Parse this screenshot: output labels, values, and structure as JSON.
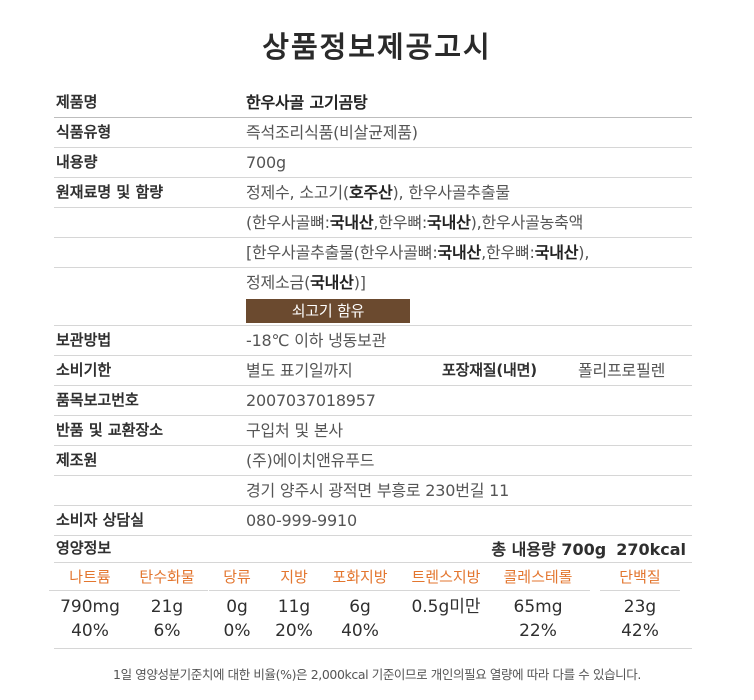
{
  "title": "상품정보제공고시",
  "rows": {
    "product_name": {
      "label": "제품명",
      "value": "한우사골 고기곰탕"
    },
    "food_type": {
      "label": "식품유형",
      "value": "즉석조리식품(비살균제품)"
    },
    "volume": {
      "label": "내용량",
      "value": "700g"
    },
    "ingredients": {
      "label": "원재료명 및 함량",
      "l1_a": "정제수, 소고기(",
      "l1_b": "호주산",
      "l1_c": "), 한우사골추출물",
      "l2_a": "(한우사골뼈:",
      "l2_b": "국내산",
      "l2_c": ",한우뼈:",
      "l2_d": "국내산",
      "l2_e": "),한우사골농축액",
      "l3_a": "[한우사골추출물(한우사골뼈:",
      "l3_b": "국내산",
      "l3_c": ",한우뼈:",
      "l3_d": "국내산",
      "l3_e": "),",
      "l4_a": "정제소금(",
      "l4_b": "국내산",
      "l4_c": ")]",
      "badge": "쇠고기 함유"
    },
    "storage": {
      "label": "보관방법",
      "value": "-18℃ 이하 냉동보관"
    },
    "expiry": {
      "label": "소비기한",
      "value": "별도 표기일까지",
      "pack_label": "포장재질(내면)",
      "pack_value": "폴리프로필렌"
    },
    "report_no": {
      "label": "품목보고번호",
      "value": "2007037018957"
    },
    "exchange": {
      "label": "반품 및 교환장소",
      "value": "구입처 및 본사"
    },
    "maker": {
      "label": "제조원",
      "value": "(주)에이치앤유푸드",
      "address": "경기 양주시 광적면 부흥로 230번길 11"
    },
    "consult": {
      "label": "소비자 상담실",
      "value": "080-999-9910"
    }
  },
  "nutrition": {
    "title": "영양정보",
    "total_label": "총 내용량 700g",
    "kcal": "270kcal",
    "items": [
      {
        "name": "나트륨",
        "amount": "790mg",
        "pct": "40%"
      },
      {
        "name": "탄수화물",
        "amount": "21g",
        "pct": "6%"
      },
      {
        "name": "당류",
        "amount": "0g",
        "pct": "0%"
      },
      {
        "name": "지방",
        "amount": "11g",
        "pct": "20%"
      },
      {
        "name": "포화지방",
        "amount": "6g",
        "pct": "40%"
      },
      {
        "name": "트렌스지방",
        "amount": "0.5g미만",
        "pct": ""
      },
      {
        "name": "콜레스테롤",
        "amount": "65mg",
        "pct": "22%"
      },
      {
        "name": "단백질",
        "amount": "23g",
        "pct": "42%"
      }
    ],
    "accent_color": "#e3762f"
  },
  "footnote": "1일 영양성분기준치에 대한 비율(%)은 2,000kcal 기준이므로 개인의필요 열량에 따라 다를 수 있습니다.",
  "badge_color": "#6b4a2f"
}
